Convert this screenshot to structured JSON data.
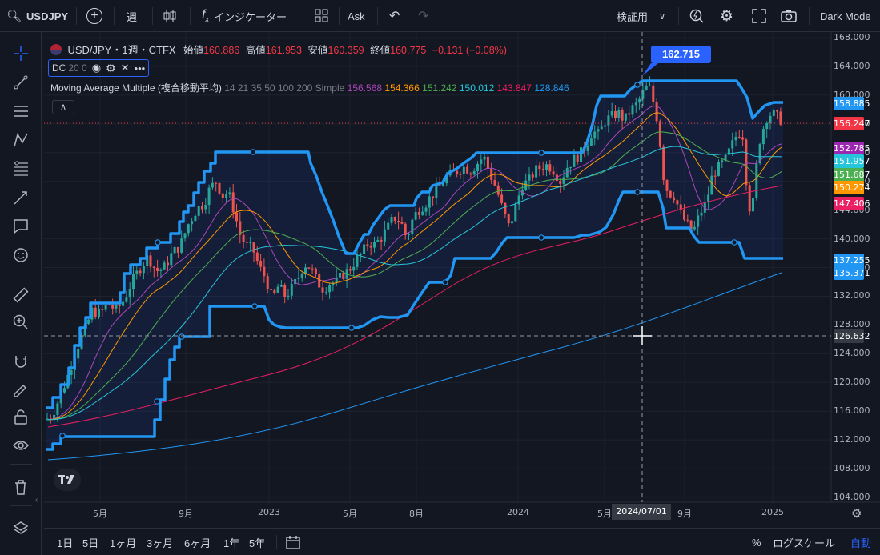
{
  "topbar": {
    "symbol": "USDJPY",
    "interval": "週",
    "indicators": "インジケーター",
    "ask": "Ask",
    "compare": "検証用",
    "theme": "Dark Mode"
  },
  "legend": {
    "title": "USD/JPY・1週・CTFX",
    "open_label": "始値",
    "open": "160.886",
    "high_label": "高値",
    "high": "161.953",
    "low_label": "安値",
    "low": "160.359",
    "close_label": "終値",
    "close": "160.775",
    "change": "−0.131 (−0.08%)",
    "dc_label": "DC",
    "dc_params": "20 0",
    "ma_label": "Moving Average Multiple (複合移動平均)",
    "ma_params": "14 21 35 50 100 200 Simple",
    "ma_values": [
      "156.568",
      "154.366",
      "151.242",
      "150.012",
      "143.847",
      "128.846"
    ],
    "ma_colors": [
      "#ab47bc",
      "#ff9800",
      "#4caf50",
      "#26c6da",
      "#e91e63",
      "#2196f3"
    ]
  },
  "price_axis": {
    "ticks": [
      "168.000",
      "164.000",
      "160.000",
      "156.000",
      "152.000",
      "148.000",
      "144.000",
      "140.000",
      "136.000",
      "132.000",
      "128.000",
      "124.000",
      "120.000",
      "116.000",
      "112.000",
      "108.000",
      "104.000"
    ],
    "badges": [
      {
        "text": "158.885",
        "color": "#2196f3"
      },
      {
        "text": "156.247",
        "color": "#f23645"
      },
      {
        "text": "152.785",
        "color": "#9c27b0"
      },
      {
        "text": "151.957",
        "color": "#26c6da"
      },
      {
        "text": "151.687",
        "color": "#4caf50"
      },
      {
        "text": "150.274",
        "color": "#ff9800"
      },
      {
        "text": "147.406",
        "color": "#e91e63"
      },
      {
        "text": "137.255",
        "color": "#2196f3"
      },
      {
        "text": "135.371",
        "color": "#2196f3"
      },
      {
        "text": "126.632",
        "color": "#363a45"
      }
    ],
    "crosshair_top": "162.715"
  },
  "time_axis": {
    "labels": [
      "5月",
      "9月",
      "2023",
      "5月",
      "8月",
      "2024",
      "5月",
      "9月",
      "2025"
    ],
    "crosshair_date": "2024/07/01"
  },
  "bottombar": {
    "ranges": [
      "1日",
      "5日",
      "1ヶ月",
      "3ヶ月",
      "6ヶ月",
      "1年",
      "5年"
    ],
    "percent": "%",
    "log": "ログスケール",
    "auto": "自動"
  },
  "colors": {
    "background": "#131722",
    "up": "#26a69a",
    "down": "#ef5350",
    "donchian": "#2196f3"
  }
}
